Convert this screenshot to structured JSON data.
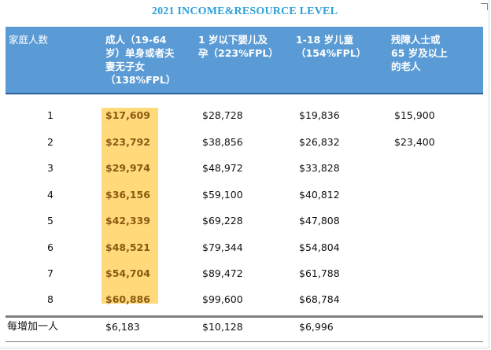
{
  "title": "2021 INCOME&RESOURCE LEVEL",
  "header": {
    "col0": "家庭人数",
    "col1": "成人（19-64\n岁）单身或者夫\n妻无子女\n（138%FPL）",
    "col2": "1 岁以下婴儿及\n孕（223%FPL）",
    "col3": "1-18 岁儿童\n（154%FPL）",
    "col4": "残障人士或\n65 岁及以上\n的老人"
  },
  "rows": [
    {
      "size": "1",
      "adult": "$17,609",
      "infant": "$28,728",
      "child": "$19,836",
      "senior": "$15,900"
    },
    {
      "size": "2",
      "adult": "$23,792",
      "infant": "$38,856",
      "child": "$26,832",
      "senior": "$23,400"
    },
    {
      "size": "3",
      "adult": "$29,974",
      "infant": "$48,972",
      "child": "$33,828",
      "senior": ""
    },
    {
      "size": "4",
      "adult": "$36,156",
      "infant": "$59,100",
      "child": "$40,812",
      "senior": ""
    },
    {
      "size": "5",
      "adult": "$42,339",
      "infant": "$69,228",
      "child": "$47,808",
      "senior": ""
    },
    {
      "size": "6",
      "adult": "$48,521",
      "infant": "$79,344",
      "child": "$54,804",
      "senior": ""
    },
    {
      "size": "7",
      "adult": "$54,704",
      "infant": "$89,472",
      "child": "$61,788",
      "senior": ""
    },
    {
      "size": "8",
      "adult": "$60,886",
      "infant": "$99,600",
      "child": "$68,784",
      "senior": ""
    }
  ],
  "footer": {
    "label": "每增加一人",
    "adult": "$6,183",
    "infant": "$10,128",
    "child": "$6,996"
  },
  "colors": {
    "title": "#2f9fd8",
    "header_bg": "#5b9bd5",
    "highlight": "#ffd97a"
  }
}
